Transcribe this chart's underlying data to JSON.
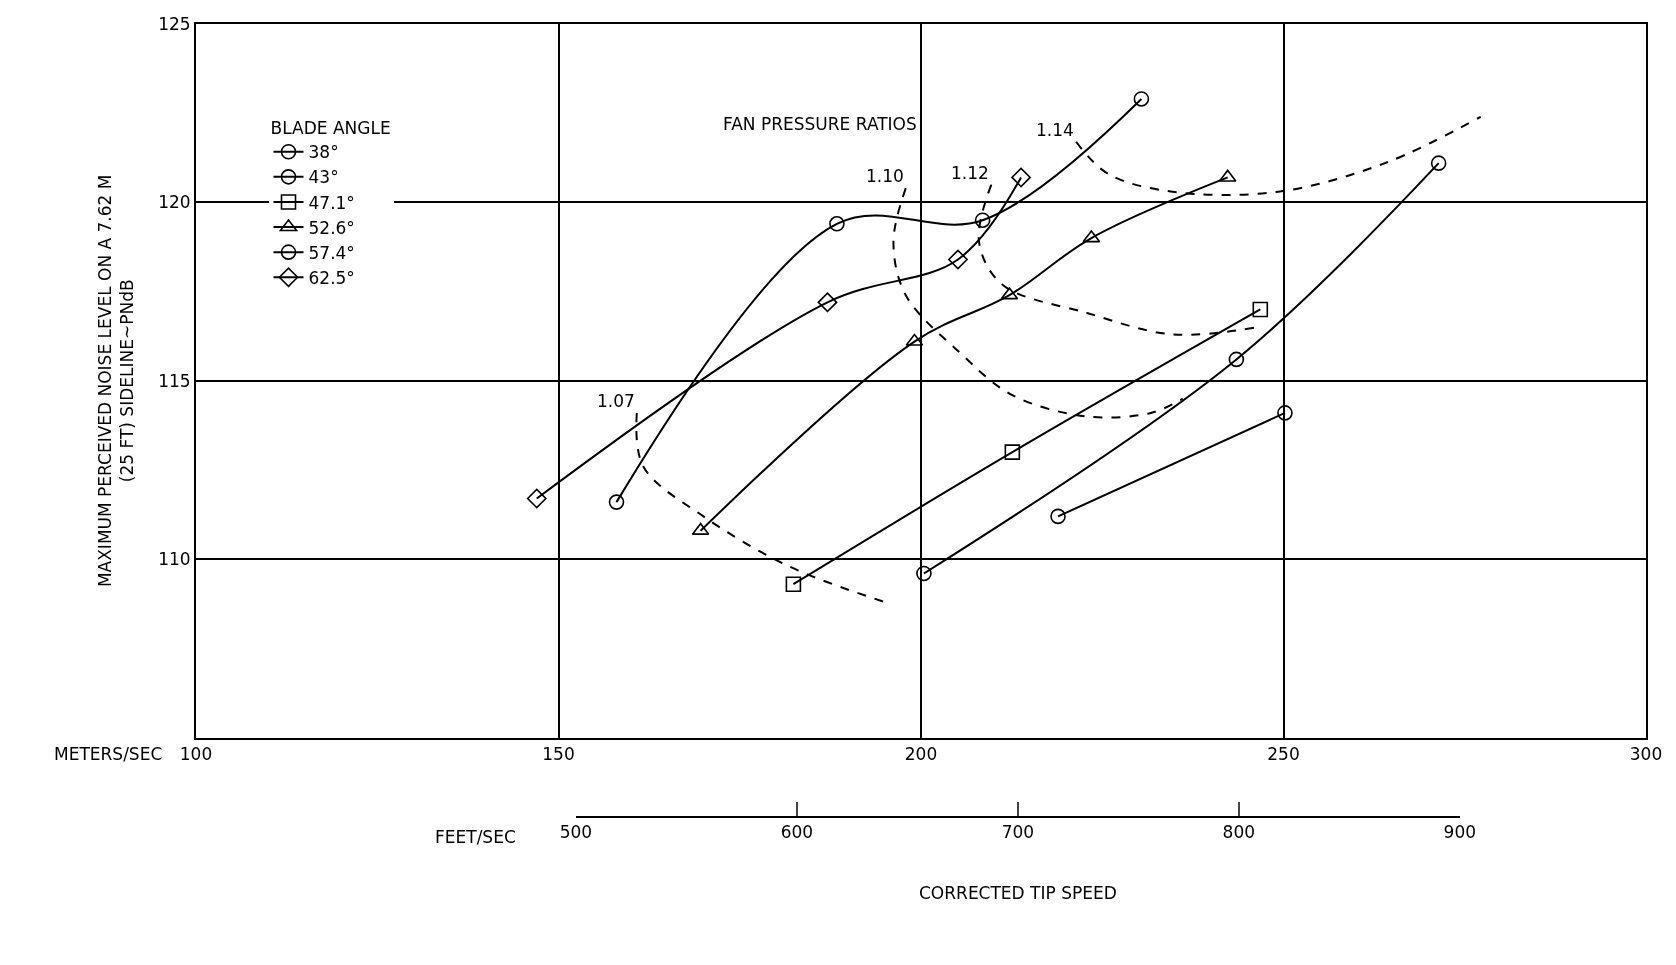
{
  "chart_data": {
    "type": "line",
    "ylabel": "MAXIMUM PERCEIVED NOISE LEVEL ON A 7.62 M\n(25 FT) SIDELINE~PNdB",
    "xlabel": "METERS/SEC",
    "x2label": "FEET/SEC",
    "legend_title": "BLADE ANGLE",
    "xlim": [
      100,
      300
    ],
    "xticks": [
      100,
      150,
      200,
      250,
      300
    ],
    "ylim": [
      105,
      125
    ],
    "yticks": [
      {
        "value": 105,
        "label": null
      },
      110,
      115,
      120,
      125
    ],
    "x2lim": [
      500,
      900
    ],
    "x2ticks": [
      500,
      600,
      700,
      800,
      900
    ],
    "grid": true,
    "legend": "top left",
    "line_style": "solid",
    "annotations": [
      "FAN PRESSURE RATIOS",
      "CORRECTED TIP SPEED",
      {
        "text": "1.07",
        "x": 160.8,
        "y": 114.1
      },
      {
        "text": "1.10",
        "x": 197.9,
        "y": 120.4
      },
      {
        "text": "1.12",
        "x": 209.7,
        "y": 120.5
      },
      {
        "text": "1.14",
        "x": 221.4,
        "y": 121.7
      }
    ],
    "series": [
      {
        "name": "38°",
        "color": "#000000",
        "marker": "circle",
        "x": [
          218.9,
          250.2
        ],
        "values": [
          111.2,
          114.1
        ]
      },
      {
        "name": "43°",
        "color": "#000000",
        "marker": "circle",
        "x": [
          200.4,
          243.5,
          271.4
        ],
        "values": [
          109.6,
          115.6,
          121.1
        ]
      },
      {
        "name": "47.1°",
        "color": "#000000",
        "marker": "square",
        "x": [
          182.4,
          212.6,
          246.8
        ],
        "values": [
          109.3,
          113.0,
          117.0
        ]
      },
      {
        "name": "52.6°",
        "color": "#000000",
        "marker": "triangle",
        "x": [
          169.6,
          199.1,
          212.2,
          223.5,
          242.3
        ],
        "values": [
          110.8,
          116.1,
          117.4,
          119.0,
          120.7
        ]
      },
      {
        "name": "57.4°",
        "color": "#000000",
        "marker": "circle",
        "x": [
          158.0,
          188.4,
          208.5,
          230.4
        ],
        "values": [
          111.6,
          119.4,
          119.5,
          122.9
        ]
      },
      {
        "name": "62.5°",
        "color": "#000000",
        "marker": "diamond",
        "x": [
          147.0,
          187.1,
          205.1,
          213.8
        ],
        "values": [
          111.7,
          117.2,
          118.4,
          120.7
        ]
      },
      {
        "color": "#000000",
        "marker": "none",
        "line_style": "dashed",
        "x": [
          160.8,
          161.7,
          170.0,
          181.8,
          195.0
        ],
        "values": [
          114.1,
          112.6,
          111.2,
          109.8,
          108.8
        ]
      },
      {
        "color": "#000000",
        "marker": "none",
        "line_style": "dashed",
        "x": [
          197.9,
          196.2,
          197.9,
          205.3,
          212.6,
          222.9,
          231.7,
          236.1
        ],
        "values": [
          120.4,
          118.9,
          117.4,
          115.8,
          114.6,
          114.0,
          114.1,
          114.5
        ]
      },
      {
        "color": "#000000",
        "marker": "none",
        "line_style": "dashed",
        "x": [
          209.7,
          208.0,
          211.2,
          222.9,
          234.7,
          246.4
        ],
        "values": [
          120.5,
          118.9,
          117.7,
          116.9,
          116.3,
          116.5
        ]
      },
      {
        "color": "#000000",
        "marker": "none",
        "line_style": "dashed",
        "x": [
          221.4,
          225.8,
          234.7,
          249.3,
          264.0,
          277.2
        ],
        "values": [
          121.7,
          120.8,
          120.3,
          120.3,
          121.1,
          122.4
        ]
      }
    ]
  }
}
